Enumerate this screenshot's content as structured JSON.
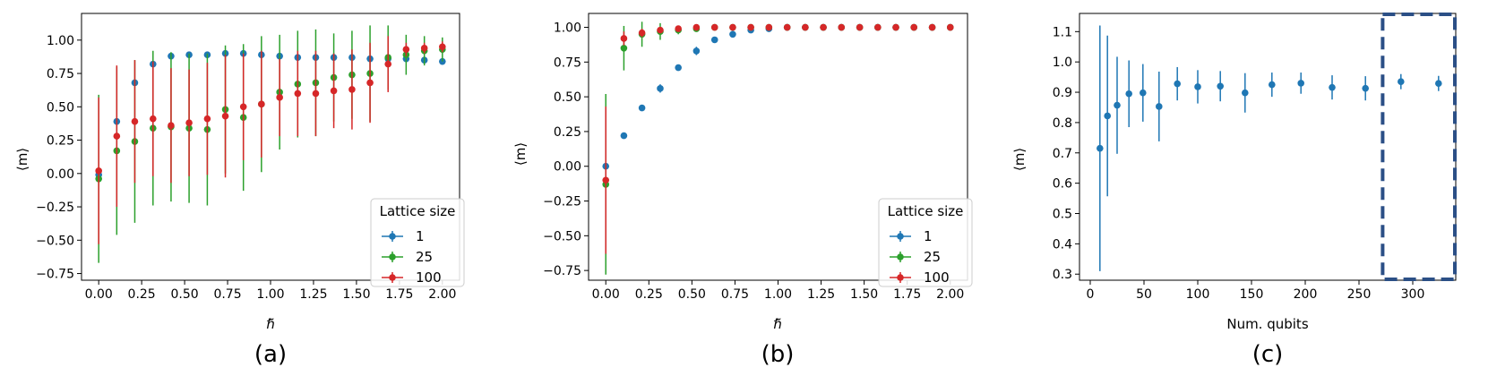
{
  "chart_data": [
    {
      "type": "scatter",
      "panel_label": "(a)",
      "xlabel": "ℏ̃",
      "ylabel": "⟨m⟩",
      "xlim": [
        -0.1,
        2.1
      ],
      "ylim": [
        -0.8,
        1.2
      ],
      "xticks": [
        0,
        0.25,
        0.5,
        0.75,
        1,
        1.25,
        1.5,
        1.75,
        2
      ],
      "xtick_labels": [
        "0.00",
        "0.25",
        "0.50",
        "0.75",
        "1.00",
        "1.25",
        "1.50",
        "1.75",
        "2.00"
      ],
      "yticks": [
        -0.75,
        -0.5,
        -0.25,
        0,
        0.25,
        0.5,
        0.75,
        1
      ],
      "ytick_labels": [
        "−0.75",
        "−0.50",
        "−0.25",
        "0.00",
        "0.25",
        "0.50",
        "0.75",
        "1.00"
      ],
      "legend": {
        "title": "Lattice size",
        "location": "lower-right"
      },
      "series": [
        {
          "name": "1",
          "color": "#1f77b4",
          "x": [
            0,
            0.105,
            0.21,
            0.316,
            0.421,
            0.526,
            0.632,
            0.737,
            0.842,
            0.947,
            1.053,
            1.158,
            1.263,
            1.368,
            1.474,
            1.579,
            1.684,
            1.789,
            1.895,
            2.0
          ],
          "y": [
            -0.01,
            0.39,
            0.68,
            0.82,
            0.88,
            0.89,
            0.89,
            0.9,
            0.9,
            0.89,
            0.88,
            0.87,
            0.87,
            0.87,
            0.87,
            0.86,
            0.86,
            0.86,
            0.85,
            0.84
          ],
          "err": [
            0.02,
            0.02,
            0.02,
            0.02,
            0.02,
            0.01,
            0.01,
            0.01,
            0.01,
            0.01,
            0.01,
            0.01,
            0.01,
            0.01,
            0.01,
            0.01,
            0.01,
            0.01,
            0.01,
            0.01
          ]
        },
        {
          "name": "25",
          "color": "#2ca02c",
          "x": [
            0,
            0.105,
            0.21,
            0.316,
            0.421,
            0.526,
            0.632,
            0.737,
            0.842,
            0.947,
            1.053,
            1.158,
            1.263,
            1.368,
            1.474,
            1.579,
            1.684,
            1.789,
            1.895,
            2.0
          ],
          "y": [
            -0.04,
            0.17,
            0.24,
            0.34,
            0.35,
            0.34,
            0.33,
            0.48,
            0.42,
            0.52,
            0.61,
            0.67,
            0.68,
            0.72,
            0.74,
            0.75,
            0.87,
            0.89,
            0.92,
            0.93
          ],
          "err": [
            0.63,
            0.63,
            0.61,
            0.58,
            0.56,
            0.56,
            0.57,
            0.48,
            0.55,
            0.51,
            0.43,
            0.4,
            0.4,
            0.33,
            0.33,
            0.36,
            0.24,
            0.15,
            0.11,
            0.09
          ]
        },
        {
          "name": "100",
          "color": "#d62728",
          "x": [
            0,
            0.105,
            0.21,
            0.316,
            0.421,
            0.526,
            0.632,
            0.737,
            0.842,
            0.947,
            1.053,
            1.158,
            1.263,
            1.368,
            1.474,
            1.579,
            1.684,
            1.789,
            1.895,
            2.0
          ],
          "y": [
            0.02,
            0.28,
            0.39,
            0.41,
            0.36,
            0.38,
            0.41,
            0.43,
            0.5,
            0.52,
            0.57,
            0.6,
            0.6,
            0.62,
            0.63,
            0.68,
            0.82,
            0.93,
            0.94,
            0.95
          ],
          "err": [
            0.55,
            0.53,
            0.46,
            0.43,
            0.43,
            0.4,
            0.42,
            0.46,
            0.4,
            0.4,
            0.29,
            0.32,
            0.32,
            0.28,
            0.3,
            0.3,
            0.21,
            0.05,
            0.04,
            0.04
          ]
        }
      ]
    },
    {
      "type": "scatter",
      "panel_label": "(b)",
      "xlabel": "ℏ̃",
      "ylabel": "⟨m⟩",
      "xlim": [
        -0.1,
        2.1
      ],
      "ylim": [
        -0.82,
        1.1
      ],
      "xticks": [
        0,
        0.25,
        0.5,
        0.75,
        1,
        1.25,
        1.5,
        1.75,
        2
      ],
      "xtick_labels": [
        "0.00",
        "0.25",
        "0.50",
        "0.75",
        "1.00",
        "1.25",
        "1.50",
        "1.75",
        "2.00"
      ],
      "yticks": [
        -0.75,
        -0.5,
        -0.25,
        0,
        0.25,
        0.5,
        0.75,
        1
      ],
      "ytick_labels": [
        "−0.75",
        "−0.50",
        "−0.25",
        "0.00",
        "0.25",
        "0.50",
        "0.75",
        "1.00"
      ],
      "legend": {
        "title": "Lattice size",
        "location": "lower-right"
      },
      "series": [
        {
          "name": "1",
          "color": "#1f77b4",
          "x": [
            0,
            0.105,
            0.21,
            0.316,
            0.421,
            0.526,
            0.632,
            0.737,
            0.842,
            0.947,
            1.053,
            1.158,
            1.263,
            1.368,
            1.474,
            1.579,
            1.684,
            1.789,
            1.895,
            2.0
          ],
          "y": [
            0.0,
            0.22,
            0.42,
            0.56,
            0.71,
            0.83,
            0.91,
            0.95,
            0.98,
            0.99,
            1.0,
            1.0,
            1.0,
            1.0,
            1.0,
            1.0,
            1.0,
            1.0,
            1.0,
            1.0
          ],
          "err": [
            0.02,
            0.01,
            0.01,
            0.03,
            0.02,
            0.03,
            0.02,
            0.01,
            0.0,
            0.0,
            0.0,
            0.0,
            0.0,
            0.0,
            0.0,
            0.0,
            0.0,
            0.0,
            0.0,
            0.0
          ]
        },
        {
          "name": "25",
          "color": "#2ca02c",
          "x": [
            0,
            0.105,
            0.21,
            0.316,
            0.421,
            0.526,
            0.632,
            0.737,
            0.842,
            0.947,
            1.053,
            1.158,
            1.263,
            1.368,
            1.474,
            1.579,
            1.684,
            1.789,
            1.895,
            2.0
          ],
          "y": [
            -0.13,
            0.85,
            0.95,
            0.97,
            0.98,
            0.99,
            1.0,
            1.0,
            1.0,
            1.0,
            1.0,
            1.0,
            1.0,
            1.0,
            1.0,
            1.0,
            1.0,
            1.0,
            1.0,
            1.0
          ],
          "err": [
            0.65,
            0.16,
            0.09,
            0.06,
            0.03,
            0.01,
            0.0,
            0.0,
            0.0,
            0.0,
            0.0,
            0.0,
            0.0,
            0.0,
            0.0,
            0.0,
            0.0,
            0.0,
            0.0,
            0.0
          ]
        },
        {
          "name": "100",
          "color": "#d62728",
          "x": [
            0,
            0.105,
            0.21,
            0.316,
            0.421,
            0.526,
            0.632,
            0.737,
            0.842,
            0.947,
            1.053,
            1.158,
            1.263,
            1.368,
            1.474,
            1.579,
            1.684,
            1.789,
            1.895,
            2.0
          ],
          "y": [
            -0.1,
            0.92,
            0.96,
            0.98,
            0.99,
            1.0,
            1.0,
            1.0,
            1.0,
            1.0,
            1.0,
            1.0,
            1.0,
            1.0,
            1.0,
            1.0,
            1.0,
            1.0,
            1.0,
            1.0
          ],
          "err": [
            0.53,
            0.05,
            0.03,
            0.02,
            0.01,
            0.0,
            0.0,
            0.0,
            0.0,
            0.0,
            0.0,
            0.0,
            0.0,
            0.0,
            0.0,
            0.0,
            0.0,
            0.0,
            0.0,
            0.0
          ]
        }
      ]
    },
    {
      "type": "scatter",
      "panel_label": "(c)",
      "xlabel": "Num. qubits",
      "ylabel": "⟨m⟩",
      "xlim": [
        -10,
        340
      ],
      "ylim": [
        0.28,
        1.16
      ],
      "xticks": [
        0,
        50,
        100,
        150,
        200,
        250,
        300
      ],
      "xtick_labels": [
        "0",
        "50",
        "100",
        "150",
        "200",
        "250",
        "300"
      ],
      "yticks": [
        0.3,
        0.4,
        0.5,
        0.6,
        0.7,
        0.8,
        0.9,
        1.0,
        1.1
      ],
      "ytick_labels": [
        "0.3",
        "0.4",
        "0.5",
        "0.6",
        "0.7",
        "0.8",
        "0.9",
        "1.0",
        "1.1"
      ],
      "highlight_x_range": [
        272,
        340
      ],
      "series": [
        {
          "name": "⟨m⟩",
          "color": "#1f77b4",
          "x": [
            9,
            16,
            25,
            36,
            49,
            64,
            81,
            100,
            121,
            144,
            169,
            196,
            225,
            256,
            289,
            324
          ],
          "y": [
            0.715,
            0.822,
            0.857,
            0.895,
            0.898,
            0.853,
            0.928,
            0.918,
            0.92,
            0.898,
            0.925,
            0.93,
            0.916,
            0.913,
            0.935,
            0.929
          ],
          "err": [
            0.405,
            0.265,
            0.16,
            0.11,
            0.095,
            0.115,
            0.055,
            0.055,
            0.05,
            0.065,
            0.04,
            0.035,
            0.04,
            0.04,
            0.025,
            0.025
          ]
        }
      ]
    }
  ]
}
